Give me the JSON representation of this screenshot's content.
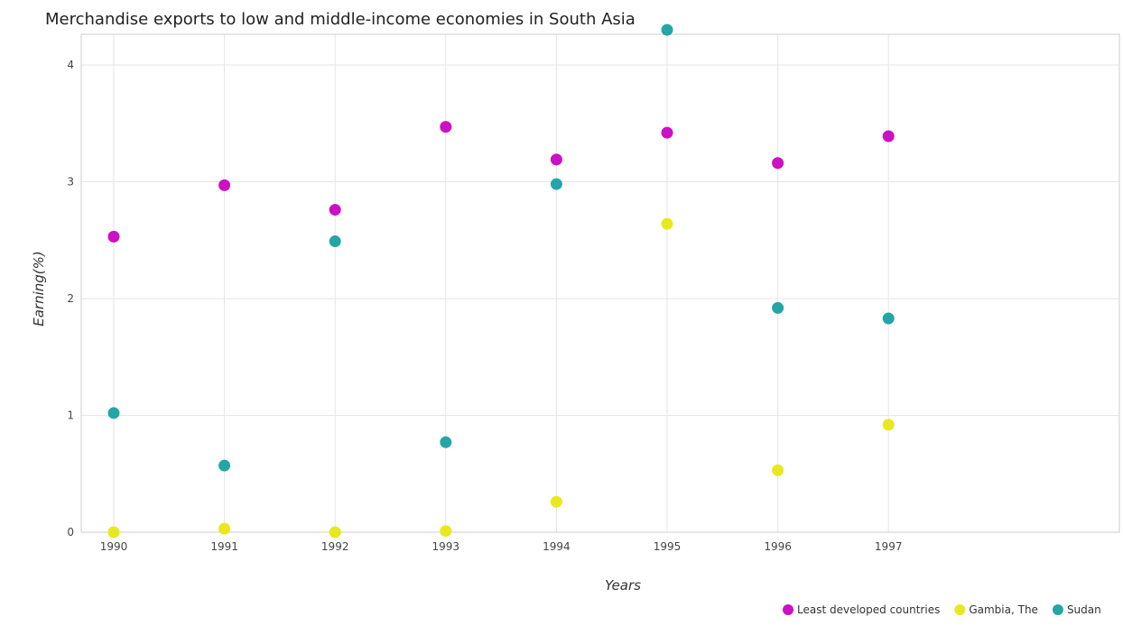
{
  "chart_data": {
    "type": "scatter",
    "title": "Merchandise exports to low and middle-income economies in South Asia",
    "xlabel": "Years",
    "ylabel": "Earning(%)",
    "categories": [
      "1990",
      "1991",
      "1992",
      "1993",
      "1994",
      "1995",
      "1996",
      "1997"
    ],
    "y_ticks": [
      "0",
      "1",
      "2",
      "3",
      "4"
    ],
    "ylim": [
      0,
      4.5
    ],
    "grid": true,
    "legend_position": "bottom-right",
    "series": [
      {
        "name": "Least developed countries",
        "color": "#cc10c4",
        "values": [
          2.53,
          2.97,
          2.76,
          3.47,
          3.19,
          3.42,
          3.16,
          3.39
        ]
      },
      {
        "name": "Gambia, The",
        "color": "#e8e81e",
        "values": [
          0.0,
          0.03,
          0.0,
          0.01,
          0.26,
          2.64,
          0.53,
          0.92
        ]
      },
      {
        "name": "Sudan",
        "color": "#24a6a6",
        "values": [
          1.02,
          0.57,
          2.49,
          0.77,
          2.98,
          4.3,
          1.92,
          1.83
        ]
      }
    ]
  }
}
